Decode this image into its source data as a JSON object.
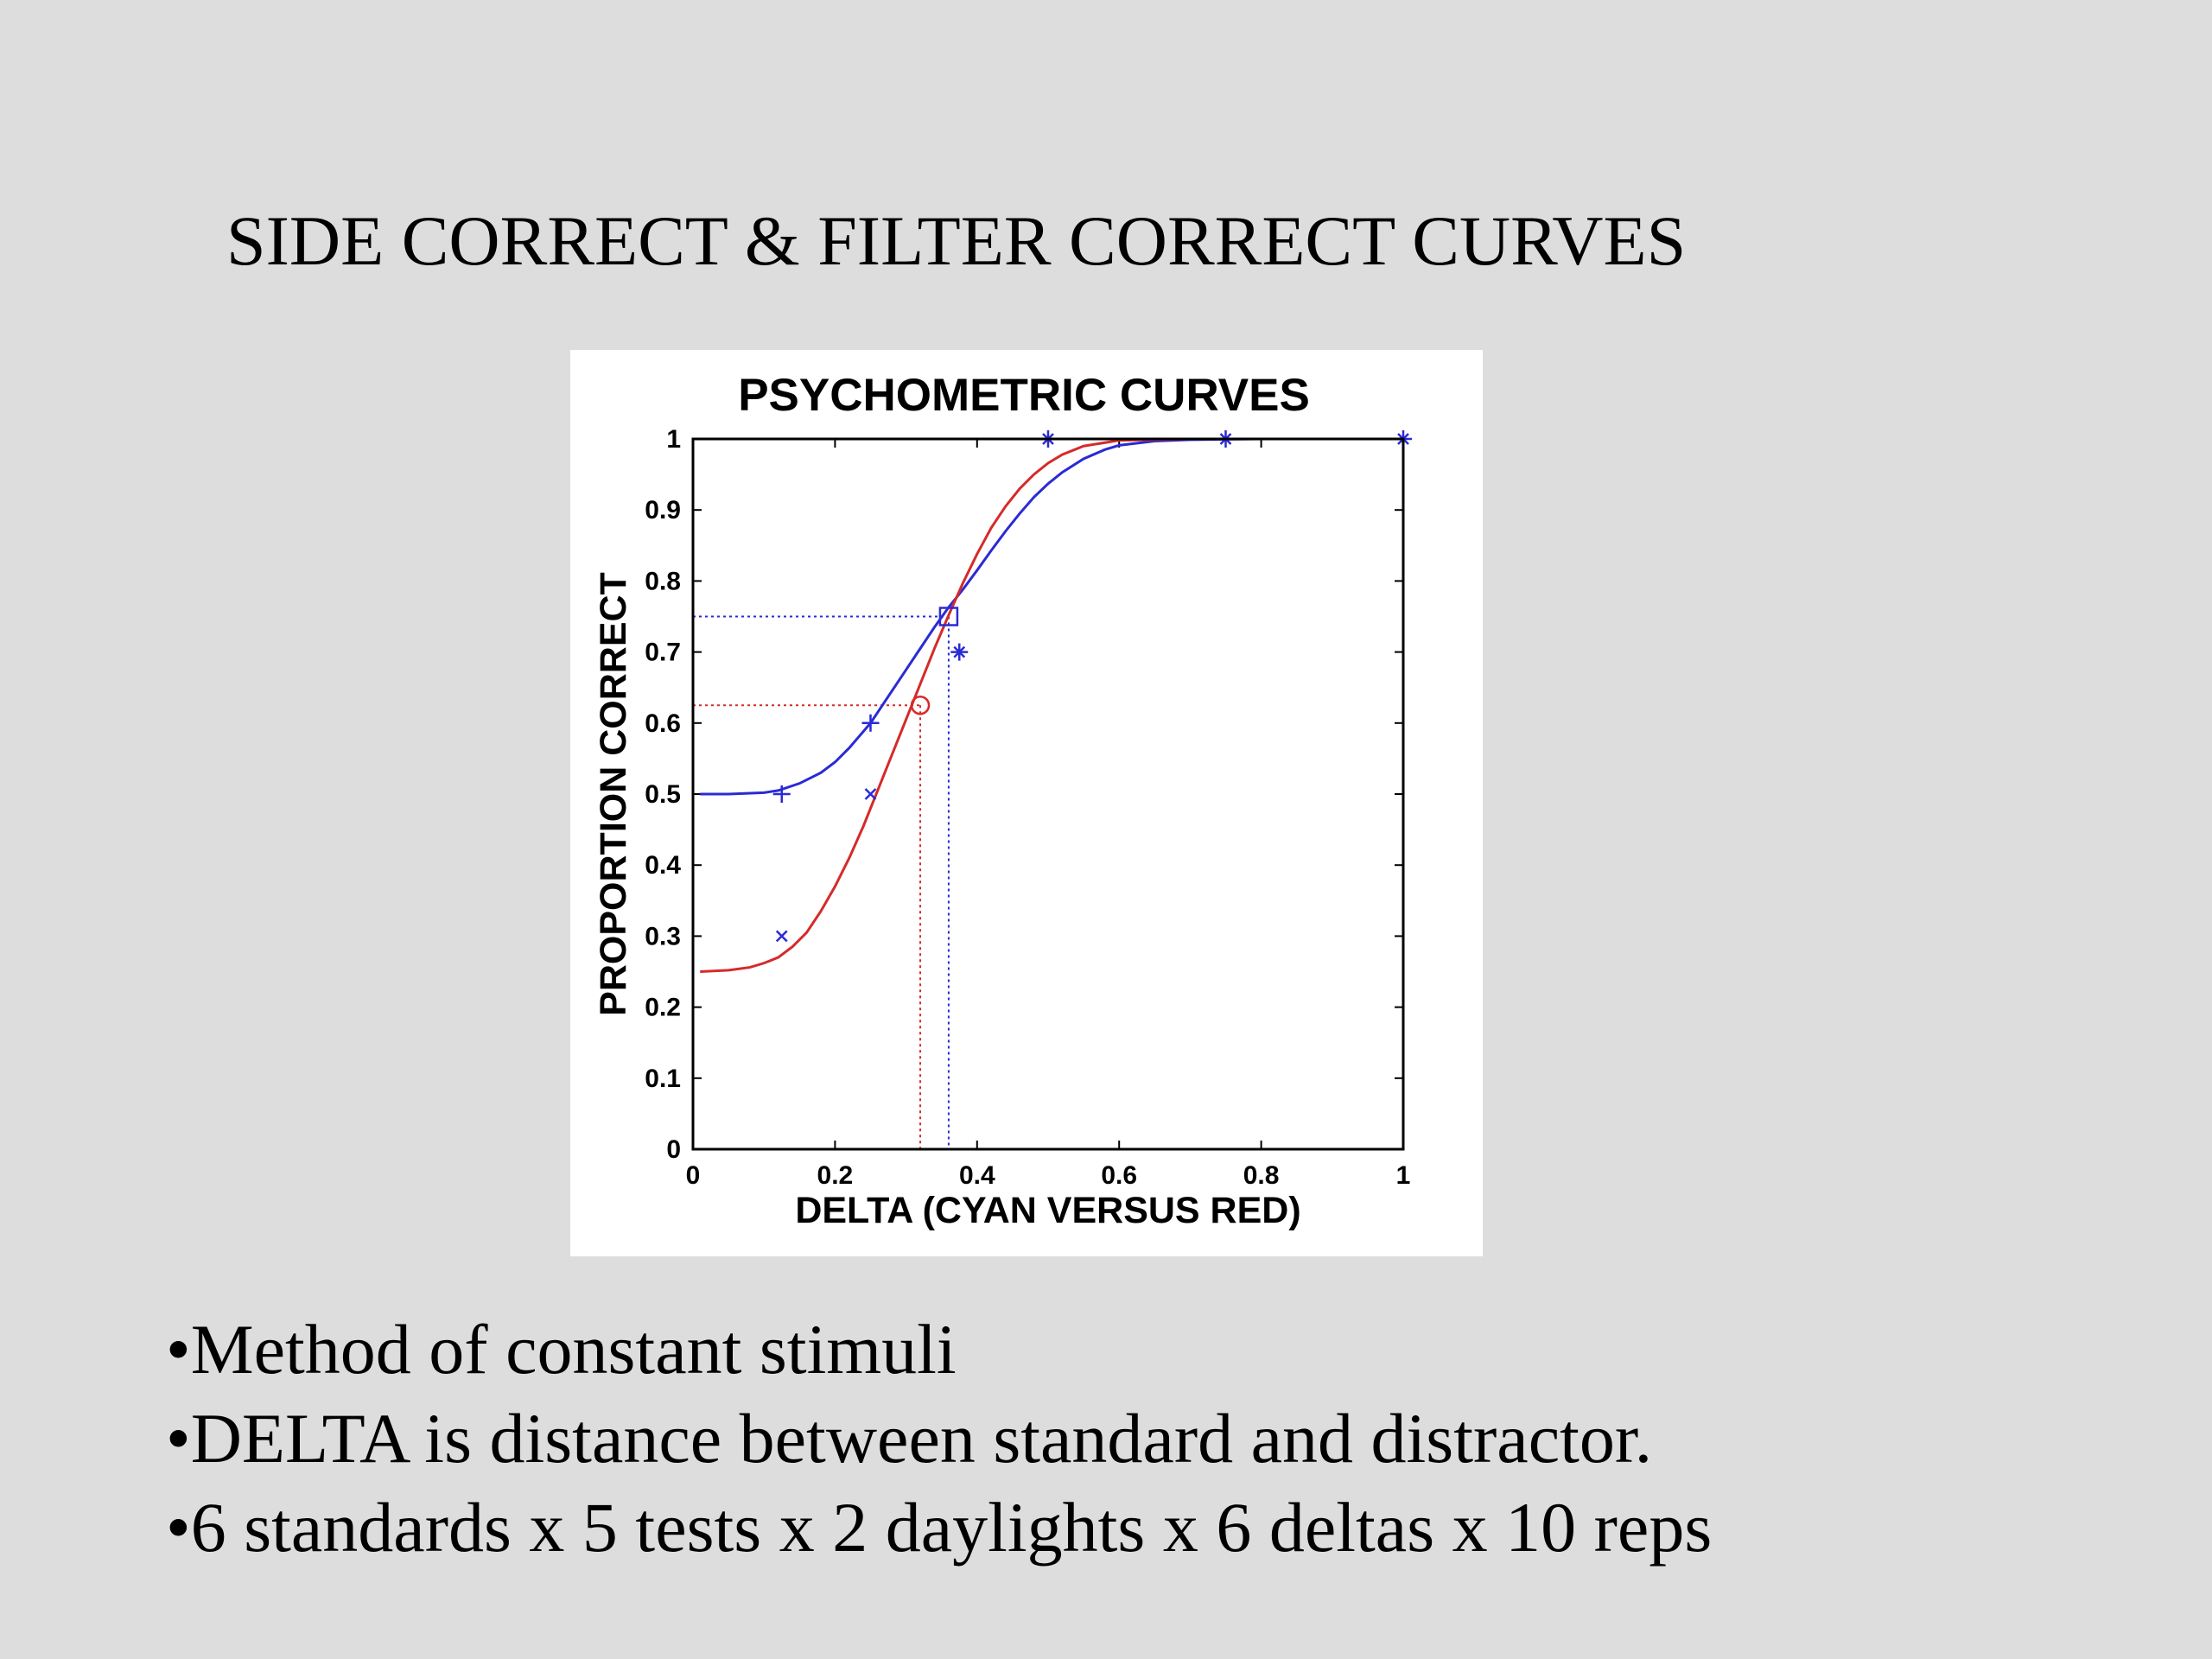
{
  "slide": {
    "title": "SIDE CORRECT & FILTER CORRECT CURVES",
    "bullets": [
      "•Method of constant stimuli",
      "•DELTA is distance between standard and distractor.",
      "•6 standards x 5 tests x 2 daylights x 6 deltas x 10 reps"
    ]
  },
  "chart_data": {
    "type": "line",
    "title": "PSYCHOMETRIC CURVES",
    "xlabel": "DELTA (CYAN VERSUS RED)",
    "ylabel": "PROPORTION CORRECT",
    "xlim": [
      0,
      1
    ],
    "ylim": [
      0,
      1
    ],
    "xticks": [
      0,
      0.2,
      0.4,
      0.6,
      0.8,
      1
    ],
    "yticks": [
      0,
      0.1,
      0.2,
      0.3,
      0.4,
      0.5,
      0.6,
      0.7,
      0.8,
      0.9,
      1
    ],
    "xtick_labels": [
      "0",
      "0.2",
      "0.4",
      "0.6",
      "0.8",
      "1"
    ],
    "ytick_labels": [
      "0",
      "0.1",
      "0.2",
      "0.3",
      "0.4",
      "0.5",
      "0.6",
      "0.7",
      "0.8",
      "0.9",
      "1"
    ],
    "grid": false,
    "legend": "none",
    "colors": {
      "blue": "#2a2ad6",
      "red": "#d62a2a"
    },
    "series": [
      {
        "color": "#2a2ad6",
        "style": "line",
        "x": [
          0.01,
          0.05,
          0.1,
          0.12,
          0.15,
          0.18,
          0.2,
          0.22,
          0.25,
          0.28,
          0.3,
          0.32,
          0.34,
          0.36,
          0.38,
          0.4,
          0.42,
          0.44,
          0.46,
          0.48,
          0.5,
          0.52,
          0.55,
          0.58,
          0.6,
          0.65,
          0.7,
          0.8,
          0.9,
          1.0
        ],
        "y": [
          0.5,
          0.5,
          0.502,
          0.505,
          0.515,
          0.53,
          0.545,
          0.565,
          0.6,
          0.645,
          0.675,
          0.705,
          0.735,
          0.763,
          0.788,
          0.815,
          0.843,
          0.87,
          0.895,
          0.918,
          0.937,
          0.953,
          0.972,
          0.985,
          0.991,
          0.997,
          0.999,
          1.0,
          1.0,
          1.0
        ]
      },
      {
        "color": "#d62a2a",
        "style": "line",
        "x": [
          0.01,
          0.05,
          0.08,
          0.1,
          0.12,
          0.14,
          0.16,
          0.18,
          0.2,
          0.22,
          0.24,
          0.26,
          0.28,
          0.3,
          0.32,
          0.34,
          0.36,
          0.38,
          0.4,
          0.42,
          0.44,
          0.46,
          0.48,
          0.5,
          0.52,
          0.55,
          0.6,
          0.7,
          0.8,
          1.0
        ],
        "y": [
          0.25,
          0.252,
          0.256,
          0.262,
          0.27,
          0.285,
          0.305,
          0.335,
          0.37,
          0.41,
          0.455,
          0.505,
          0.555,
          0.605,
          0.655,
          0.705,
          0.752,
          0.797,
          0.838,
          0.875,
          0.905,
          0.93,
          0.95,
          0.966,
          0.978,
          0.99,
          0.998,
          1.0,
          1.0,
          1.0
        ]
      },
      {
        "color": "#2a2ad6",
        "style": "plus-markers",
        "x": [
          0.125,
          0.25,
          0.375,
          0.5,
          0.75,
          1.0
        ],
        "y": [
          0.5,
          0.6,
          0.7,
          1.0,
          1.0,
          1.0
        ]
      },
      {
        "color": "#2a2ad6",
        "style": "x-markers",
        "x": [
          0.125,
          0.25,
          0.375,
          0.5,
          0.75,
          1.0
        ],
        "y": [
          0.3,
          0.5,
          0.7,
          1.0,
          1.0,
          1.0
        ]
      }
    ],
    "thresholds": [
      {
        "color": "#2a2ad6",
        "marker": "square",
        "x": 0.36,
        "y": 0.75
      },
      {
        "color": "#d62a2a",
        "marker": "circle",
        "x": 0.32,
        "y": 0.625
      }
    ]
  }
}
